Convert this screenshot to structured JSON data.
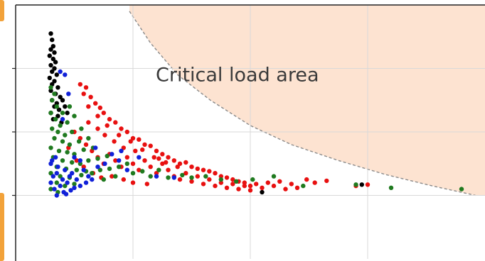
{
  "colors": {
    "critical_fill": "#fde3d1",
    "boundary_stroke": "#8a8a8a",
    "grid": "#d9d9d9",
    "axes": "#222222",
    "edge_tab": "#f2a23a",
    "series_black": "#000000",
    "series_red": "#e81010",
    "series_green": "#1f7a1f",
    "series_blue": "#1020d8"
  },
  "chart_data": {
    "type": "scatter",
    "title": "",
    "xlabel": "",
    "ylabel": "",
    "grid": true,
    "xlim": [
      0,
      4
    ],
    "ylim": [
      0,
      4
    ],
    "xticks": [
      1,
      2,
      3
    ],
    "yticks": [
      1,
      2,
      3
    ],
    "annotations": [
      {
        "text": "Critical load area",
        "x": 1.55,
        "y": 2.9
      }
    ],
    "critical_boundary": [
      [
        0.97,
        3.9
      ],
      [
        1.15,
        3.4
      ],
      [
        1.38,
        2.9
      ],
      [
        1.66,
        2.5
      ],
      [
        2.0,
        2.1
      ],
      [
        2.35,
        1.8
      ],
      [
        2.75,
        1.55
      ],
      [
        3.15,
        1.33
      ],
      [
        3.55,
        1.15
      ],
      [
        3.92,
        1.0
      ]
    ],
    "series": [
      {
        "color": "black",
        "points": [
          [
            0.3,
            3.55
          ],
          [
            0.31,
            3.45
          ],
          [
            0.32,
            3.35
          ],
          [
            0.3,
            3.3
          ],
          [
            0.33,
            3.25
          ],
          [
            0.29,
            3.2
          ],
          [
            0.32,
            3.15
          ],
          [
            0.34,
            3.1
          ],
          [
            0.3,
            3.05
          ],
          [
            0.33,
            3.0
          ],
          [
            0.31,
            2.95
          ],
          [
            0.35,
            2.9
          ],
          [
            0.29,
            2.85
          ],
          [
            0.33,
            2.8
          ],
          [
            0.31,
            2.75
          ],
          [
            0.36,
            2.7
          ],
          [
            0.3,
            2.65
          ],
          [
            0.34,
            2.6
          ],
          [
            0.38,
            2.55
          ],
          [
            0.31,
            2.5
          ],
          [
            0.35,
            2.45
          ],
          [
            0.4,
            2.5
          ],
          [
            0.33,
            2.4
          ],
          [
            0.37,
            2.35
          ],
          [
            0.3,
            2.3
          ],
          [
            0.42,
            2.4
          ],
          [
            0.36,
            2.25
          ],
          [
            0.32,
            2.2
          ],
          [
            0.39,
            2.15
          ],
          [
            0.44,
            2.3
          ],
          [
            2.1,
            1.05
          ],
          [
            2.95,
            1.17
          ]
        ]
      },
      {
        "color": "red",
        "points": [
          [
            0.55,
            2.75
          ],
          [
            0.6,
            2.7
          ],
          [
            0.58,
            2.6
          ],
          [
            0.64,
            2.55
          ],
          [
            0.68,
            2.45
          ],
          [
            0.62,
            2.4
          ],
          [
            0.72,
            2.38
          ],
          [
            0.75,
            2.3
          ],
          [
            0.7,
            2.25
          ],
          [
            0.8,
            2.2
          ],
          [
            0.85,
            2.15
          ],
          [
            0.78,
            2.1
          ],
          [
            0.9,
            2.05
          ],
          [
            0.95,
            2.0
          ],
          [
            0.88,
            1.95
          ],
          [
            1.0,
            1.9
          ],
          [
            1.05,
            1.88
          ],
          [
            0.98,
            1.85
          ],
          [
            1.1,
            1.8
          ],
          [
            1.15,
            1.78
          ],
          [
            1.08,
            1.72
          ],
          [
            1.2,
            1.7
          ],
          [
            1.25,
            1.65
          ],
          [
            1.3,
            1.6
          ],
          [
            1.22,
            1.58
          ],
          [
            1.35,
            1.55
          ],
          [
            1.4,
            1.5
          ],
          [
            1.45,
            1.52
          ],
          [
            1.5,
            1.45
          ],
          [
            1.55,
            1.42
          ],
          [
            1.6,
            1.4
          ],
          [
            1.65,
            1.38
          ],
          [
            1.7,
            1.35
          ],
          [
            1.75,
            1.3
          ],
          [
            1.8,
            1.28
          ],
          [
            1.85,
            1.25
          ],
          [
            1.9,
            1.22
          ],
          [
            1.95,
            1.2
          ],
          [
            2.0,
            1.15
          ],
          [
            2.05,
            1.18
          ],
          [
            2.1,
            1.12
          ],
          [
            2.15,
            1.2
          ],
          [
            2.2,
            1.15
          ],
          [
            2.25,
            1.22
          ],
          [
            2.3,
            1.1
          ],
          [
            2.35,
            1.18
          ],
          [
            2.4,
            1.12
          ],
          [
            2.48,
            1.25
          ],
          [
            2.55,
            1.2
          ],
          [
            2.65,
            1.23
          ],
          [
            2.9,
            1.15
          ],
          [
            3.0,
            1.17
          ],
          [
            0.5,
            2.0
          ],
          [
            0.55,
            1.9
          ],
          [
            0.6,
            1.8
          ],
          [
            0.65,
            1.7
          ],
          [
            0.7,
            1.6
          ],
          [
            0.75,
            1.5
          ],
          [
            0.8,
            1.65
          ],
          [
            0.85,
            1.55
          ],
          [
            0.9,
            1.45
          ],
          [
            0.95,
            1.6
          ],
          [
            1.0,
            1.5
          ],
          [
            1.05,
            1.4
          ],
          [
            1.1,
            1.55
          ],
          [
            1.15,
            1.45
          ],
          [
            1.2,
            1.35
          ],
          [
            1.25,
            1.5
          ],
          [
            1.3,
            1.4
          ],
          [
            1.35,
            1.3
          ],
          [
            1.4,
            1.25
          ],
          [
            1.45,
            1.35
          ],
          [
            1.5,
            1.22
          ],
          [
            1.55,
            1.3
          ],
          [
            1.6,
            1.18
          ],
          [
            1.65,
            1.25
          ],
          [
            1.7,
            1.15
          ],
          [
            1.75,
            1.2
          ],
          [
            1.8,
            1.12
          ],
          [
            1.85,
            1.18
          ],
          [
            1.9,
            1.1
          ],
          [
            1.95,
            1.15
          ],
          [
            2.0,
            1.08
          ],
          [
            0.45,
            1.75
          ],
          [
            0.52,
            1.55
          ],
          [
            0.58,
            1.45
          ],
          [
            0.66,
            1.35
          ],
          [
            0.73,
            1.28
          ],
          [
            0.82,
            1.3
          ],
          [
            0.92,
            1.25
          ],
          [
            1.0,
            1.2
          ],
          [
            1.12,
            1.18
          ],
          [
            0.62,
            2.15
          ],
          [
            0.7,
            2.05
          ],
          [
            0.76,
            1.95
          ],
          [
            0.84,
            1.85
          ],
          [
            0.92,
            1.75
          ],
          [
            1.02,
            1.7
          ],
          [
            1.18,
            1.6
          ],
          [
            1.28,
            1.52
          ],
          [
            1.38,
            1.45
          ]
        ]
      },
      {
        "color": "green",
        "points": [
          [
            0.3,
            2.7
          ],
          [
            0.33,
            2.6
          ],
          [
            0.31,
            2.5
          ],
          [
            0.35,
            2.4
          ],
          [
            0.3,
            2.3
          ],
          [
            0.34,
            2.2
          ],
          [
            0.38,
            2.1
          ],
          [
            0.31,
            2.05
          ],
          [
            0.36,
            2.0
          ],
          [
            0.42,
            1.95
          ],
          [
            0.33,
            1.9
          ],
          [
            0.4,
            1.85
          ],
          [
            0.46,
            1.8
          ],
          [
            0.3,
            1.75
          ],
          [
            0.37,
            1.7
          ],
          [
            0.44,
            1.68
          ],
          [
            0.5,
            1.65
          ],
          [
            0.32,
            1.6
          ],
          [
            0.4,
            1.55
          ],
          [
            0.48,
            1.52
          ],
          [
            0.55,
            1.5
          ],
          [
            0.35,
            1.45
          ],
          [
            0.43,
            1.42
          ],
          [
            0.52,
            1.4
          ],
          [
            0.6,
            1.38
          ],
          [
            0.3,
            1.35
          ],
          [
            0.38,
            1.3
          ],
          [
            0.46,
            1.28
          ],
          [
            0.56,
            1.32
          ],
          [
            0.65,
            1.35
          ],
          [
            0.72,
            1.4
          ],
          [
            0.8,
            1.42
          ],
          [
            0.88,
            1.45
          ],
          [
            0.95,
            1.5
          ],
          [
            0.62,
            1.55
          ],
          [
            0.7,
            1.58
          ],
          [
            0.78,
            1.62
          ],
          [
            0.58,
            1.72
          ],
          [
            0.66,
            1.75
          ],
          [
            0.54,
            1.85
          ],
          [
            0.62,
            1.9
          ],
          [
            0.48,
            2.0
          ],
          [
            0.56,
            2.05
          ],
          [
            0.44,
            2.15
          ],
          [
            0.5,
            2.25
          ],
          [
            0.4,
            2.3
          ],
          [
            0.46,
            2.4
          ],
          [
            1.0,
            1.35
          ],
          [
            1.08,
            1.38
          ],
          [
            1.15,
            1.3
          ],
          [
            1.22,
            1.4
          ],
          [
            1.3,
            1.28
          ],
          [
            1.42,
            1.32
          ],
          [
            1.5,
            1.28
          ],
          [
            1.62,
            1.3
          ],
          [
            1.75,
            1.25
          ],
          [
            1.88,
            1.22
          ],
          [
            2.02,
            1.25
          ],
          [
            2.2,
            1.3
          ],
          [
            2.45,
            1.15
          ],
          [
            2.9,
            1.17
          ],
          [
            3.2,
            1.12
          ],
          [
            3.8,
            1.1
          ],
          [
            0.35,
            1.2
          ],
          [
            0.42,
            1.15
          ],
          [
            0.5,
            1.18
          ],
          [
            0.3,
            1.1
          ],
          [
            0.36,
            1.05
          ],
          [
            0.85,
            1.3
          ],
          [
            0.75,
            1.25
          ]
        ]
      },
      {
        "color": "blue",
        "points": [
          [
            0.38,
            2.95
          ],
          [
            0.42,
            2.9
          ],
          [
            0.45,
            2.6
          ],
          [
            0.4,
            2.2
          ],
          [
            0.34,
            1.6
          ],
          [
            0.3,
            1.5
          ],
          [
            0.36,
            1.45
          ],
          [
            0.42,
            1.4
          ],
          [
            0.48,
            1.35
          ],
          [
            0.32,
            1.3
          ],
          [
            0.4,
            1.25
          ],
          [
            0.46,
            1.3
          ],
          [
            0.52,
            1.25
          ],
          [
            0.3,
            1.2
          ],
          [
            0.38,
            1.15
          ],
          [
            0.44,
            1.2
          ],
          [
            0.5,
            1.12
          ],
          [
            0.33,
            1.1
          ],
          [
            0.41,
            1.05
          ],
          [
            0.47,
            1.08
          ],
          [
            0.55,
            1.15
          ],
          [
            0.6,
            1.2
          ],
          [
            0.65,
            1.25
          ],
          [
            0.35,
            1.0
          ],
          [
            0.43,
            1.02
          ],
          [
            0.58,
            1.4
          ],
          [
            0.62,
            1.3
          ],
          [
            0.7,
            1.45
          ],
          [
            0.55,
            1.55
          ],
          [
            0.5,
            1.6
          ],
          [
            0.82,
            1.65
          ],
          [
            0.9,
            1.7
          ],
          [
            0.95,
            1.4
          ],
          [
            0.68,
            1.75
          ],
          [
            0.76,
            1.5
          ],
          [
            0.88,
            1.55
          ],
          [
            1.05,
            1.6
          ],
          [
            1.2,
            1.3
          ],
          [
            1.35,
            1.28
          ],
          [
            0.35,
            1.35
          ],
          [
            0.31,
            1.55
          ]
        ]
      }
    ]
  }
}
